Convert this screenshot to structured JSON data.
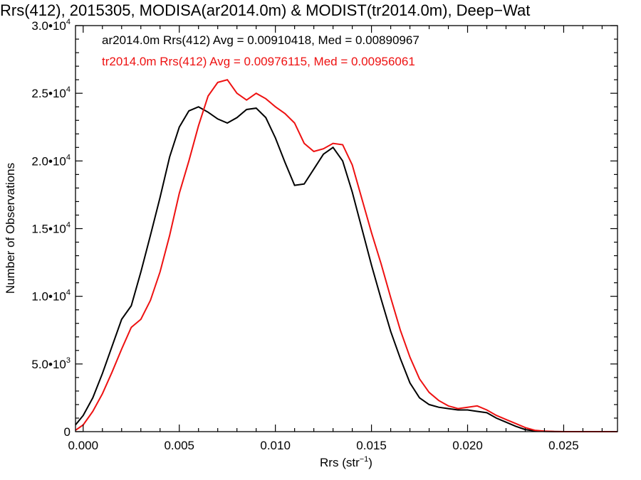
{
  "chart_data": {
    "type": "line",
    "title": "Rrs(412), 2015305, MODISA(ar2014.0m) & MODIST(tr2014.0m), Deep−Wat",
    "xlabel_main": "Rrs (str",
    "xlabel_sup": "−1",
    "xlabel_close": ")",
    "ylabel": "Number of Observations",
    "xlim": [
      -0.0004,
      0.0278
    ],
    "ylim": [
      0,
      30000
    ],
    "x_ticks": [
      {
        "value": 0.0,
        "label": "0.000"
      },
      {
        "value": 0.005,
        "label": "0.005"
      },
      {
        "value": 0.01,
        "label": "0.010"
      },
      {
        "value": 0.015,
        "label": "0.015"
      },
      {
        "value": 0.02,
        "label": "0.020"
      },
      {
        "value": 0.025,
        "label": "0.025"
      }
    ],
    "y_ticks": [
      {
        "value": 0,
        "mant": "0",
        "exp": ""
      },
      {
        "value": 5000,
        "mant": "5.0•10",
        "exp": "3"
      },
      {
        "value": 10000,
        "mant": "1.0•10",
        "exp": "4"
      },
      {
        "value": 15000,
        "mant": "1.5•10",
        "exp": "4"
      },
      {
        "value": 20000,
        "mant": "2.0•10",
        "exp": "4"
      },
      {
        "value": 25000,
        "mant": "2.5•10",
        "exp": "4"
      },
      {
        "value": 30000,
        "mant": "3.0•10",
        "exp": "4"
      }
    ],
    "annotations": [
      {
        "text": "ar2014.0m Rrs(412) Avg = 0.00910418, Med = 0.00890967",
        "color": "#000000"
      },
      {
        "text": "tr2014.0m Rrs(412) Avg = 0.00976115, Med = 0.00956061",
        "color": "#ee1111"
      }
    ],
    "series": [
      {
        "color": "#000000",
        "x": [
          -0.0004,
          0.0,
          0.0005,
          0.001,
          0.0015,
          0.002,
          0.0025,
          0.003,
          0.0035,
          0.004,
          0.0045,
          0.005,
          0.0055,
          0.006,
          0.0065,
          0.007,
          0.0075,
          0.008,
          0.0085,
          0.009,
          0.0095,
          0.01,
          0.0105,
          0.011,
          0.0115,
          0.012,
          0.0125,
          0.013,
          0.0135,
          0.014,
          0.0145,
          0.015,
          0.0155,
          0.016,
          0.0165,
          0.017,
          0.0175,
          0.018,
          0.0185,
          0.019,
          0.0195,
          0.02,
          0.0205,
          0.021,
          0.0215,
          0.022,
          0.0225,
          0.023,
          0.0235,
          0.024,
          0.0245,
          0.025,
          0.026,
          0.0278
        ],
        "y": [
          500,
          1200,
          2500,
          4300,
          6300,
          8300,
          9300,
          11800,
          14500,
          17300,
          20300,
          22500,
          23700,
          24000,
          23600,
          23100,
          22800,
          23200,
          23800,
          23900,
          23200,
          21700,
          19900,
          18200,
          18300,
          19400,
          20500,
          21000,
          20000,
          17700,
          15000,
          12300,
          9800,
          7400,
          5400,
          3600,
          2500,
          2000,
          1800,
          1700,
          1600,
          1600,
          1500,
          1400,
          1000,
          700,
          400,
          150,
          50,
          20,
          5,
          0,
          0,
          0
        ]
      },
      {
        "color": "#ee1111",
        "x": [
          -0.0004,
          0.0,
          0.0005,
          0.001,
          0.0015,
          0.002,
          0.0025,
          0.003,
          0.0035,
          0.004,
          0.0045,
          0.005,
          0.0055,
          0.006,
          0.0065,
          0.007,
          0.0075,
          0.008,
          0.0085,
          0.009,
          0.0095,
          0.01,
          0.0105,
          0.011,
          0.0115,
          0.012,
          0.0125,
          0.013,
          0.0135,
          0.014,
          0.0145,
          0.015,
          0.0155,
          0.016,
          0.0165,
          0.017,
          0.0175,
          0.018,
          0.0185,
          0.019,
          0.0195,
          0.02,
          0.0205,
          0.021,
          0.0215,
          0.022,
          0.0225,
          0.023,
          0.0235,
          0.024,
          0.0245,
          0.025,
          0.026,
          0.0278
        ],
        "y": [
          100,
          500,
          1500,
          2800,
          4400,
          6100,
          7700,
          8300,
          9700,
          11800,
          14500,
          17600,
          20000,
          22600,
          24800,
          25800,
          26000,
          25000,
          24500,
          25000,
          24600,
          24000,
          23500,
          22800,
          21300,
          20700,
          20900,
          21300,
          21200,
          19700,
          17200,
          14700,
          12400,
          9900,
          7500,
          5500,
          3900,
          2900,
          2300,
          1900,
          1700,
          1800,
          1900,
          1600,
          1200,
          900,
          600,
          300,
          100,
          40,
          10,
          0,
          0,
          0
        ]
      }
    ]
  }
}
